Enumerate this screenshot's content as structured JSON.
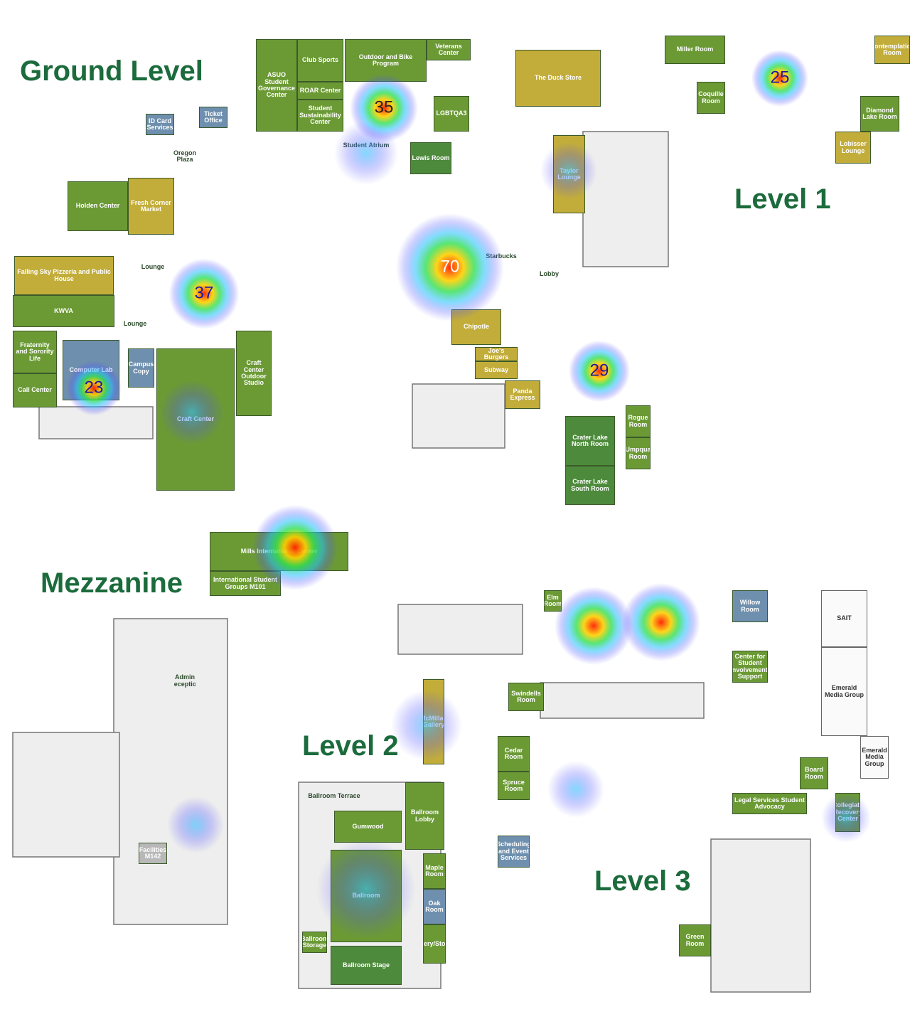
{
  "levels": [
    "Ground Level",
    "Level 1",
    "Mezzanine",
    "Level 2",
    "Level 3"
  ],
  "rooms": [
    "ASUO Student Governance Center",
    "Club Sports",
    "Outdoor and Bike Program",
    "Veterans Center",
    "ROAR Center",
    "Student Sustainability Center",
    "LGBTQA3",
    "Lewis Room",
    "Student Atrium",
    "Ticket Office",
    "ID Card Services",
    "Oregon Plaza",
    "Holden Center",
    "Fresh Corner Market",
    "Falling Sky Pizzeria and Public House",
    "KWVA",
    "Fraternity and Sorority Life",
    "Call Center",
    "Computer Lab",
    "Campus Copy",
    "Craft Center",
    "Craft Center Outdoor Studio",
    "Lounge",
    "Lounge",
    "The Duck Store",
    "Miller Room",
    "Coquille Room",
    "Diamond Lake Room",
    "Lobisser Lounge",
    "Contemplation Room",
    "Taylor Lounge",
    "Lobby",
    "Starbucks",
    "Chipotle",
    "Joe's Burgers",
    "Subway",
    "Panda Express",
    "Crater Lake North Room",
    "Crater Lake South Room",
    "Rogue Room",
    "Umpqua Room",
    "Mills International Center",
    "International Student Groups M101",
    "Admin Reception",
    "Facilities M142",
    "Elm Room",
    "Willow Room",
    "Center for Student Involvement: Support",
    "Swindells Room",
    "McMillan Gallery",
    "Cedar Room",
    "Spruce Room",
    "Scheduling and Event Services",
    "Ballroom Lobby",
    "Ballroom Terrace",
    "Gumwood",
    "Ballroom",
    "Ballroom Stage",
    "Maple Room",
    "Oak Room",
    "Servery/Storage",
    "Ballroom Storage",
    "SAIT",
    "Emerald Media Group",
    "Board Room",
    "Emerald Media Group",
    "Legal Services Student Advocacy",
    "Collegiate Recovery Center",
    "Green Room"
  ],
  "hotspots": [
    35,
    25,
    37,
    70,
    23,
    29
  ]
}
